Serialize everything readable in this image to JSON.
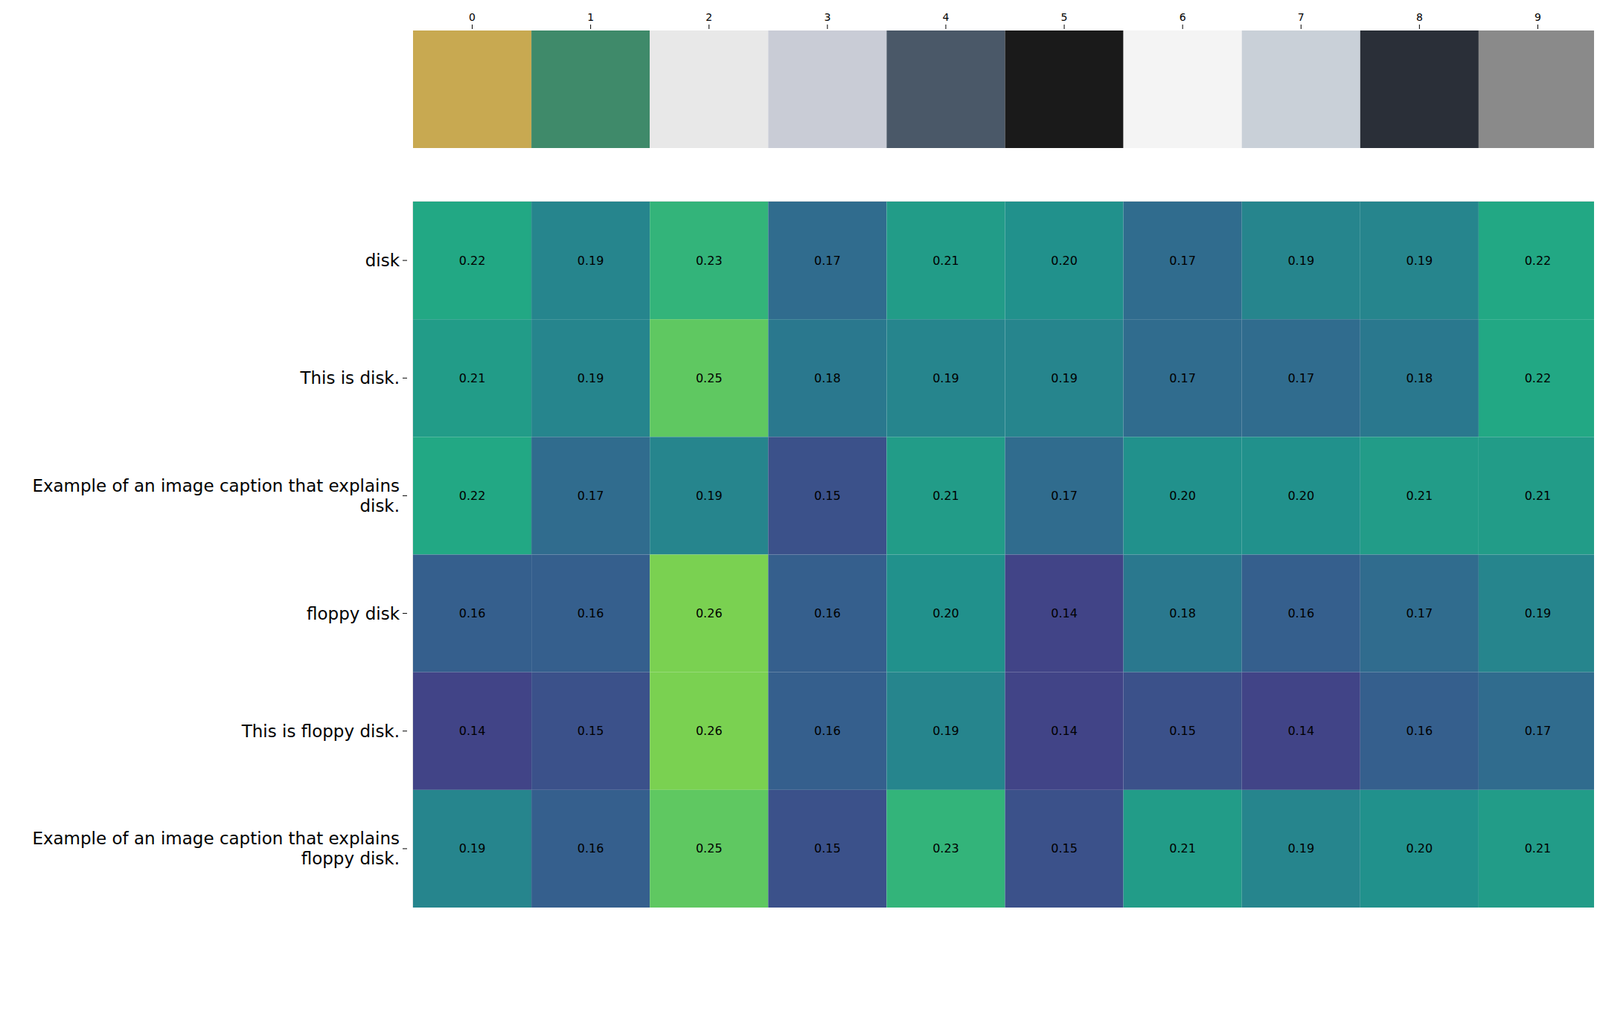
{
  "chart_data": {
    "type": "heatmap",
    "color": "viridis",
    "categories": [
      "0",
      "1",
      "2",
      "3",
      "4",
      "5",
      "6",
      "7",
      "8",
      "9"
    ],
    "rows": [
      "disk",
      "This is disk.",
      "Example of an image caption that explains disk.",
      "floppy disk",
      "This is floppy disk.",
      "Example of an image caption that explains floppy disk."
    ],
    "values": [
      [
        0.22,
        0.19,
        0.23,
        0.17,
        0.21,
        0.2,
        0.17,
        0.19,
        0.19,
        0.22
      ],
      [
        0.21,
        0.19,
        0.25,
        0.18,
        0.19,
        0.19,
        0.17,
        0.17,
        0.18,
        0.22
      ],
      [
        0.22,
        0.17,
        0.19,
        0.15,
        0.21,
        0.17,
        0.2,
        0.2,
        0.21,
        0.21
      ],
      [
        0.16,
        0.16,
        0.26,
        0.16,
        0.2,
        0.14,
        0.18,
        0.16,
        0.17,
        0.19
      ],
      [
        0.14,
        0.15,
        0.26,
        0.16,
        0.19,
        0.14,
        0.15,
        0.14,
        0.16,
        0.17
      ],
      [
        0.19,
        0.16,
        0.25,
        0.15,
        0.23,
        0.15,
        0.21,
        0.19,
        0.2,
        0.21
      ]
    ],
    "value_labels": [
      [
        "0.22",
        "0.19",
        "0.23",
        "0.17",
        "0.21",
        "0.20",
        "0.17",
        "0.19",
        "0.19",
        "0.22"
      ],
      [
        "0.21",
        "0.19",
        "0.25",
        "0.18",
        "0.19",
        "0.19",
        "0.17",
        "0.17",
        "0.18",
        "0.22"
      ],
      [
        "0.22",
        "0.17",
        "0.19",
        "0.15",
        "0.21",
        "0.17",
        "0.20",
        "0.20",
        "0.21",
        "0.21"
      ],
      [
        "0.16",
        "0.16",
        "0.26",
        "0.16",
        "0.20",
        "0.14",
        "0.18",
        "0.16",
        "0.17",
        "0.19"
      ],
      [
        "0.14",
        "0.15",
        "0.26",
        "0.16",
        "0.19",
        "0.14",
        "0.15",
        "0.14",
        "0.16",
        "0.17"
      ],
      [
        "0.19",
        "0.16",
        "0.25",
        "0.15",
        "0.23",
        "0.15",
        "0.21",
        "0.19",
        "0.20",
        "0.21"
      ]
    ]
  }
}
